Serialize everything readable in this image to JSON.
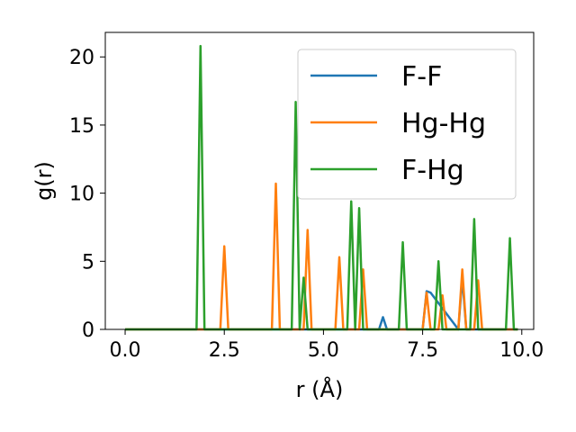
{
  "chart_data": {
    "type": "line",
    "xlabel": "r (Å)",
    "ylabel": "g(r)",
    "xlim": [
      -0.5,
      10.3
    ],
    "ylim": [
      0,
      21.8
    ],
    "x_ticks": [
      0.0,
      2.5,
      5.0,
      7.5,
      10.0
    ],
    "x_tick_labels": [
      "0.0",
      "2.5",
      "5.0",
      "7.5",
      "10.0"
    ],
    "y_ticks": [
      0,
      5,
      10,
      15,
      20
    ],
    "y_tick_labels": [
      "0",
      "5",
      "10",
      "15",
      "20"
    ],
    "grid": false,
    "legend": "top-right",
    "series": [
      {
        "name": "F-F",
        "color": "#1f77b4",
        "x": [
          0.0,
          6.4,
          6.5,
          6.6,
          7.5,
          7.6,
          7.7,
          8.4,
          8.5,
          8.6,
          9.9
        ],
        "y": [
          0,
          0,
          0.9,
          0,
          0,
          2.8,
          2.7,
          0,
          3.8,
          0,
          0
        ]
      },
      {
        "name": "Hg-Hg",
        "color": "#ff7f0e",
        "x": [
          0.0,
          2.4,
          2.5,
          2.6,
          3.7,
          3.8,
          3.9,
          4.5,
          4.6,
          4.7,
          5.3,
          5.4,
          5.5,
          5.9,
          6.0,
          6.1,
          7.5,
          7.6,
          7.7,
          7.9,
          8.0,
          8.1,
          8.4,
          8.5,
          8.6,
          8.8,
          8.9,
          9.0,
          9.9
        ],
        "y": [
          0,
          0,
          6.1,
          0,
          0,
          10.7,
          0,
          0,
          7.3,
          0,
          0,
          5.3,
          0,
          0,
          4.4,
          0,
          0,
          2.7,
          0,
          0,
          2.5,
          0,
          0,
          4.4,
          0,
          0,
          3.6,
          0,
          0
        ]
      },
      {
        "name": "F-Hg",
        "color": "#2ca02c",
        "x": [
          0.0,
          1.8,
          1.9,
          2.0,
          4.2,
          4.3,
          4.4,
          4.5,
          4.6,
          5.6,
          5.7,
          5.8,
          5.9,
          6.0,
          6.9,
          7.0,
          7.1,
          7.8,
          7.9,
          8.0,
          8.7,
          8.8,
          8.9,
          9.6,
          9.7,
          9.8,
          9.9
        ],
        "y": [
          0,
          0,
          20.8,
          0,
          0,
          16.7,
          0,
          3.8,
          0,
          0,
          9.4,
          0,
          8.9,
          0,
          0,
          6.4,
          0,
          0,
          5.0,
          0,
          0,
          8.1,
          0,
          0,
          6.7,
          0,
          0
        ]
      }
    ]
  }
}
